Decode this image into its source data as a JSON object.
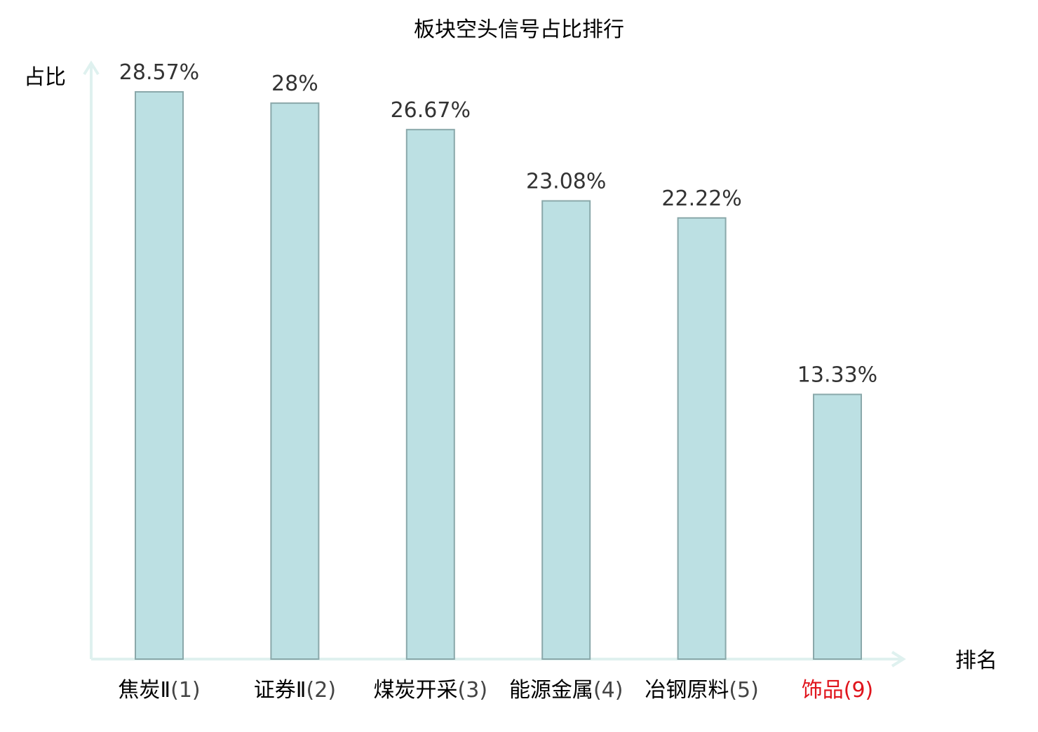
{
  "chart_data": {
    "type": "bar",
    "title": "板块空头信号占比排行",
    "ylabel": "占比",
    "xlabel": "排名",
    "categories": [
      {
        "name": "焦炭Ⅱ",
        "rank": "(1)"
      },
      {
        "name": "证券Ⅱ",
        "rank": "(2)"
      },
      {
        "name": "煤炭开采",
        "rank": "(3)"
      },
      {
        "name": "能源金属",
        "rank": "(4)"
      },
      {
        "name": "冶钢原料",
        "rank": "(5)"
      },
      {
        "name": "饰品",
        "rank": "(9)",
        "highlight": true
      }
    ],
    "values": [
      28.57,
      28,
      26.67,
      23.08,
      22.22,
      13.33
    ],
    "value_labels": [
      "28.57%",
      "28%",
      "26.67%",
      "23.08%",
      "22.22%",
      "13.33%"
    ],
    "ylim": [
      0,
      30
    ],
    "grid": false,
    "colors": {
      "bar_fill": "#bce0e3",
      "bar_stroke": "#8aa8aa",
      "axis": "#dff1ef",
      "highlight_text": "#e0141c",
      "normal_text": "#000000",
      "rank_text": "#444444",
      "value_text": "#333333"
    }
  }
}
